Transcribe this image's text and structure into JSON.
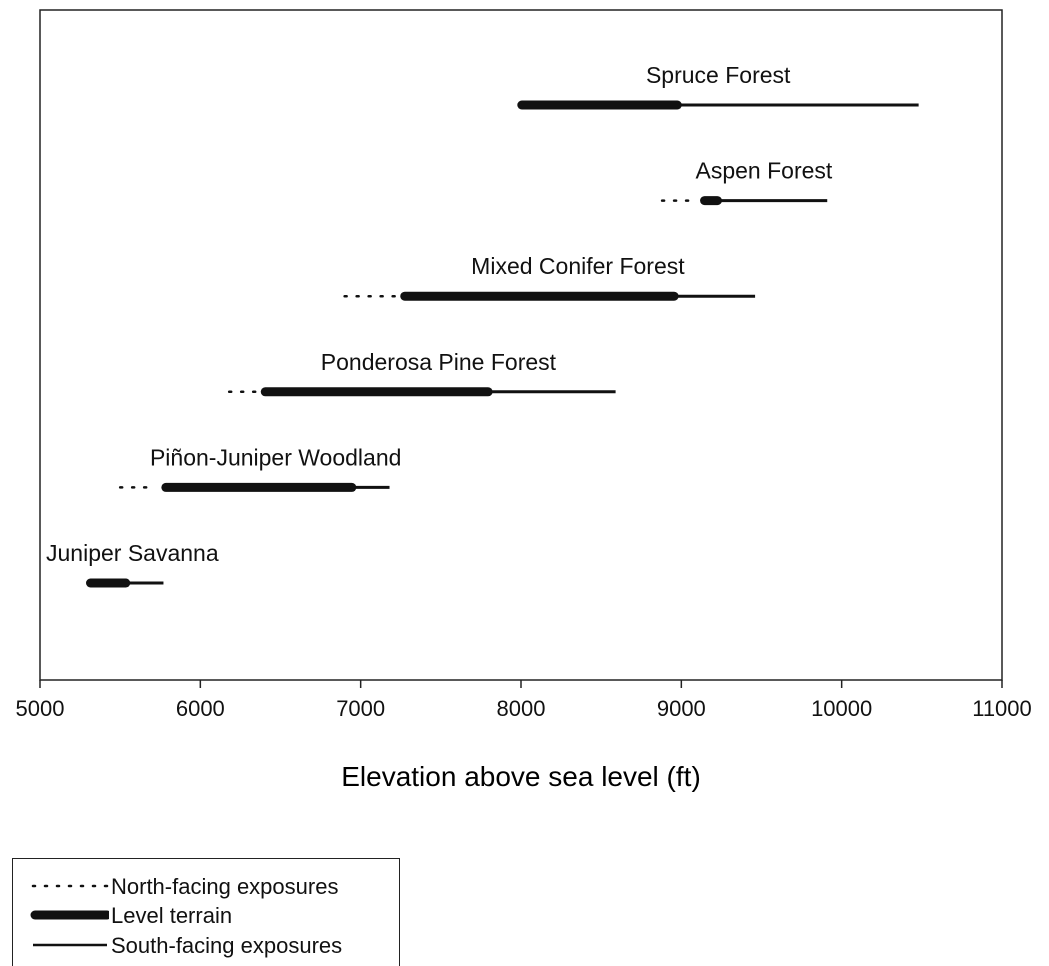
{
  "chart_data": {
    "type": "range",
    "xlabel": "Elevation above sea level (ft)",
    "xlim": [
      5000,
      11000
    ],
    "xticks": [
      5000,
      6000,
      7000,
      8000,
      9000,
      10000,
      11000
    ],
    "legend_position": "bottom-left",
    "series": [
      {
        "name": "North-facing exposures",
        "style": "dotted"
      },
      {
        "name": "Level terrain",
        "style": "thick"
      },
      {
        "name": "South-facing exposures",
        "style": "thin"
      }
    ],
    "vegetation_zones": [
      {
        "name": "Spruce Forest",
        "north": null,
        "level": [
          7980,
          9000
        ],
        "south": [
          9000,
          10480
        ]
      },
      {
        "name": "Aspen Forest",
        "north": [
          8880,
          9120
        ],
        "level": [
          9120,
          9250
        ],
        "south": [
          9250,
          9910
        ]
      },
      {
        "name": "Mixed Conifer Forest",
        "north": [
          6900,
          7250
        ],
        "level": [
          7250,
          8980
        ],
        "south": [
          8980,
          9460
        ]
      },
      {
        "name": "Ponderosa Pine Forest",
        "north": [
          6180,
          6380
        ],
        "level": [
          6380,
          7820
        ],
        "south": [
          7820,
          8590
        ]
      },
      {
        "name": "Piñon-Juniper Woodland",
        "north": [
          5500,
          5760
        ],
        "level": [
          5760,
          6970
        ],
        "south": [
          6970,
          7180
        ]
      },
      {
        "name": "Juniper Savanna",
        "north": null,
        "level": [
          5290,
          5560
        ],
        "south": [
          5560,
          5770
        ]
      }
    ]
  }
}
